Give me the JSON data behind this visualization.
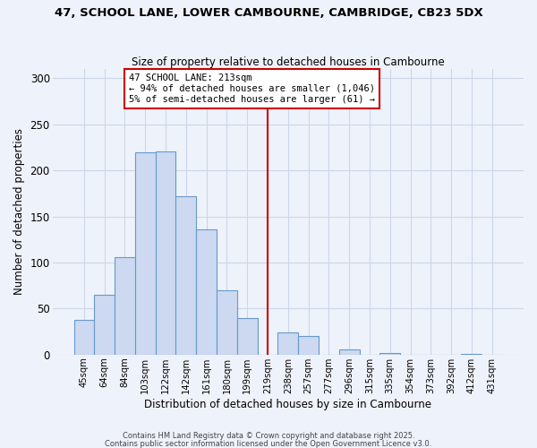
{
  "title": "47, SCHOOL LANE, LOWER CAMBOURNE, CAMBRIDGE, CB23 5DX",
  "subtitle": "Size of property relative to detached houses in Cambourne",
  "xlabel": "Distribution of detached houses by size in Cambourne",
  "ylabel": "Number of detached properties",
  "bar_labels": [
    "45sqm",
    "64sqm",
    "84sqm",
    "103sqm",
    "122sqm",
    "142sqm",
    "161sqm",
    "180sqm",
    "199sqm",
    "219sqm",
    "238sqm",
    "257sqm",
    "277sqm",
    "296sqm",
    "315sqm",
    "335sqm",
    "354sqm",
    "373sqm",
    "392sqm",
    "412sqm",
    "431sqm"
  ],
  "bar_values": [
    38,
    65,
    106,
    220,
    221,
    172,
    136,
    70,
    40,
    0,
    24,
    20,
    0,
    6,
    0,
    2,
    0,
    0,
    0,
    1,
    0
  ],
  "bar_color": "#ccd9f0",
  "bar_edge_color": "#6699cc",
  "vline_x": 9.5,
  "vline_color": "#cc0000",
  "annotation_title": "47 SCHOOL LANE: 213sqm",
  "annotation_line2": "← 94% of detached houses are smaller (1,046)",
  "annotation_line3": "5% of semi-detached houses are larger (61) →",
  "annotation_box_color": "#cc0000",
  "ylim": [
    0,
    310
  ],
  "yticks": [
    0,
    50,
    100,
    150,
    200,
    250,
    300
  ],
  "grid_color": "#ccd6e8",
  "background_color": "#eef2fa",
  "footer1": "Contains HM Land Registry data © Crown copyright and database right 2025.",
  "footer2": "Contains public sector information licensed under the Open Government Licence v3.0."
}
